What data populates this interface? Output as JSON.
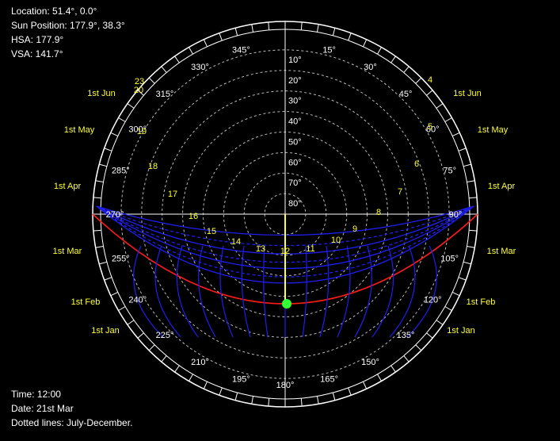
{
  "info_top": {
    "location": "Location: 51.4°, 0.0°",
    "sun_position": "Sun Position: 177.9°, 38.3°",
    "hsa": "HSA: 177.9°",
    "vsa": "VSA: 141.7°"
  },
  "info_bottom": {
    "time": "Time: 12:00",
    "date": "Date: 21st Mar",
    "dotted_note": "Dotted lines: July-December."
  },
  "azimuth_labels": [
    "345°",
    "15°",
    "30°",
    "45°",
    "60°",
    "75°",
    "90°",
    "105°",
    "120°",
    "135°",
    "150°",
    "165°",
    "180°",
    "195°",
    "210°",
    "225°",
    "240°",
    "255°",
    "270°",
    "285°",
    "300°",
    "315°",
    "330°"
  ],
  "altitude_labels": [
    "10°",
    "20°",
    "30°",
    "40°",
    "50°",
    "60°",
    "70°",
    "80°"
  ],
  "month_labels_left": [
    "1st Jun",
    "1st May",
    "1st Apr",
    "1st Mar",
    "1st Feb",
    "1st Jan"
  ],
  "month_labels_right": [
    "1st Jun",
    "1st May",
    "1st Apr",
    "1st Mar",
    "1st Feb",
    "1st Jan"
  ],
  "hour_labels": [
    "4",
    "5",
    "6",
    "7",
    "8",
    "9",
    "10",
    "11",
    "12",
    "13",
    "14",
    "15",
    "16",
    "17",
    "18",
    "19",
    "20"
  ],
  "top_left_hours": "23",
  "colors": {
    "background": "#000000",
    "grid": "#ffffff",
    "sun_path": "#1e1ef0",
    "current_day": "#ff1a1a",
    "labels": "#ffff33",
    "sun_marker": "#33ff33"
  }
}
